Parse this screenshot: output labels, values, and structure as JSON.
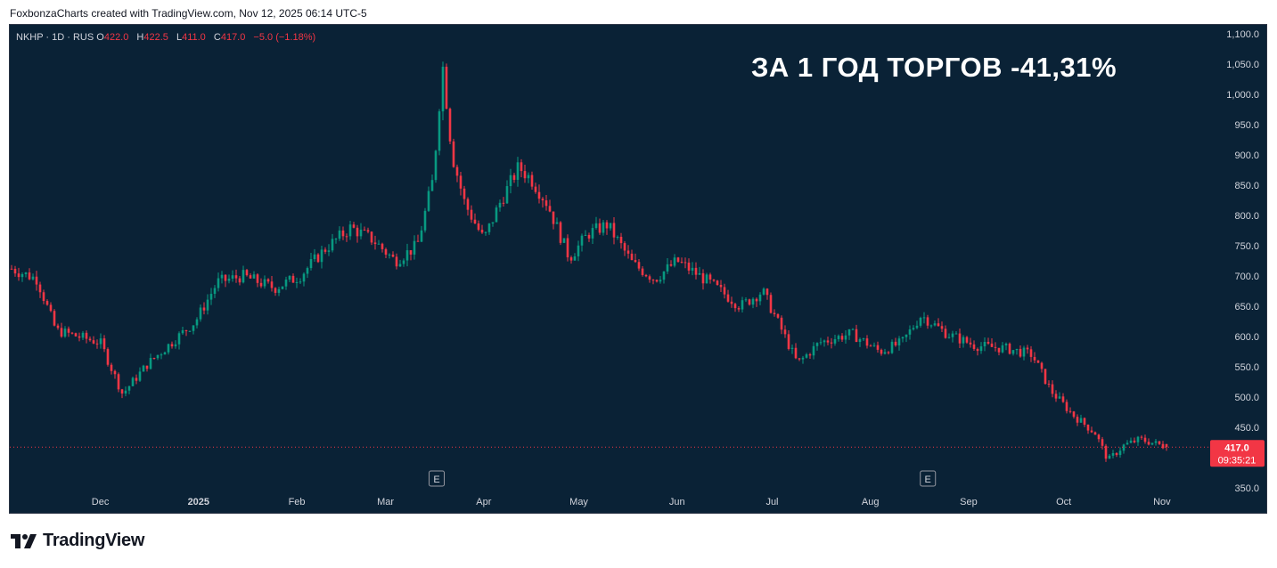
{
  "caption": "FoxbonzaCharts created with TradingView.com, Nov 12, 2025 06:14 UTC-5",
  "legend": {
    "symbol": "NKHP · 1D · RUS",
    "o_label": "O",
    "o": "422.0",
    "h_label": "H",
    "h": "422.5",
    "l_label": "L",
    "l": "411.0",
    "c_label": "C",
    "c": "417.0",
    "change": "−5.0 (−1.18%)"
  },
  "headline": "ЗА 1 ГОД ТОРГОВ -41,31%",
  "price_tag": {
    "price": "417.0",
    "countdown": "09:35:21",
    "color": "#f23645"
  },
  "event_marker": "E",
  "brand": "TradingView",
  "colors": {
    "up": "#089981",
    "down": "#f23645",
    "background": "#0a2236",
    "axis_text": "#d1d4dc"
  },
  "chart_data": {
    "type": "candlestick",
    "title": "ЗА 1 ГОД ТОРГОВ -41,31%",
    "y_ticks": [
      350,
      450,
      500,
      550,
      600,
      650,
      700,
      750,
      800,
      850,
      900,
      950,
      1000,
      1050,
      1100
    ],
    "ylim": [
      335,
      1115
    ],
    "x_ticks": [
      "Dec",
      "2025",
      "Feb",
      "Mar",
      "Apr",
      "May",
      "Jun",
      "Jul",
      "Aug",
      "Sep",
      "Oct",
      "Nov"
    ],
    "events": [
      "Apr",
      "Aug"
    ],
    "last_price": 417.0,
    "close_path": [
      {
        "x": "2024-11-12",
        "close": 712
      },
      {
        "x": "2024-11-20",
        "close": 695
      },
      {
        "x": "2024-11-26",
        "close": 610
      },
      {
        "x": "2024-12-03",
        "close": 600
      },
      {
        "x": "2024-12-10",
        "close": 590
      },
      {
        "x": "2024-12-17",
        "close": 505
      },
      {
        "x": "2024-12-25",
        "close": 555
      },
      {
        "x": "2025-01-09",
        "close": 625
      },
      {
        "x": "2025-01-16",
        "close": 690
      },
      {
        "x": "2025-01-24",
        "close": 700
      },
      {
        "x": "2025-02-03",
        "close": 680
      },
      {
        "x": "2025-02-11",
        "close": 700
      },
      {
        "x": "2025-02-19",
        "close": 745
      },
      {
        "x": "2025-02-27",
        "close": 780
      },
      {
        "x": "2025-03-06",
        "close": 760
      },
      {
        "x": "2025-03-13",
        "close": 725
      },
      {
        "x": "2025-03-20",
        "close": 750
      },
      {
        "x": "2025-03-25",
        "close": 860
      },
      {
        "x": "2025-03-28",
        "close": 1050
      },
      {
        "x": "2025-03-31",
        "close": 900
      },
      {
        "x": "2025-04-04",
        "close": 820
      },
      {
        "x": "2025-04-10",
        "close": 760
      },
      {
        "x": "2025-04-15",
        "close": 820
      },
      {
        "x": "2025-04-21",
        "close": 880
      },
      {
        "x": "2025-04-25",
        "close": 860
      },
      {
        "x": "2025-04-30",
        "close": 820
      },
      {
        "x": "2025-05-07",
        "close": 730
      },
      {
        "x": "2025-05-13",
        "close": 770
      },
      {
        "x": "2025-05-19",
        "close": 785
      },
      {
        "x": "2025-05-27",
        "close": 720
      },
      {
        "x": "2025-06-03",
        "close": 695
      },
      {
        "x": "2025-06-10",
        "close": 725
      },
      {
        "x": "2025-06-20",
        "close": 690
      },
      {
        "x": "2025-06-30",
        "close": 650
      },
      {
        "x": "2025-07-07",
        "close": 675
      },
      {
        "x": "2025-07-14",
        "close": 600
      },
      {
        "x": "2025-07-18",
        "close": 555
      },
      {
        "x": "2025-07-25",
        "close": 590
      },
      {
        "x": "2025-08-04",
        "close": 605
      },
      {
        "x": "2025-08-13",
        "close": 575
      },
      {
        "x": "2025-08-20",
        "close": 590
      },
      {
        "x": "2025-08-26",
        "close": 635
      },
      {
        "x": "2025-09-03",
        "close": 605
      },
      {
        "x": "2025-09-12",
        "close": 585
      },
      {
        "x": "2025-09-22",
        "close": 580
      },
      {
        "x": "2025-09-30",
        "close": 570
      },
      {
        "x": "2025-10-06",
        "close": 510
      },
      {
        "x": "2025-10-13",
        "close": 470
      },
      {
        "x": "2025-10-20",
        "close": 440
      },
      {
        "x": "2025-10-24",
        "close": 395
      },
      {
        "x": "2025-10-29",
        "close": 420
      },
      {
        "x": "2025-11-03",
        "close": 430
      },
      {
        "x": "2025-11-12",
        "close": 417
      }
    ]
  }
}
